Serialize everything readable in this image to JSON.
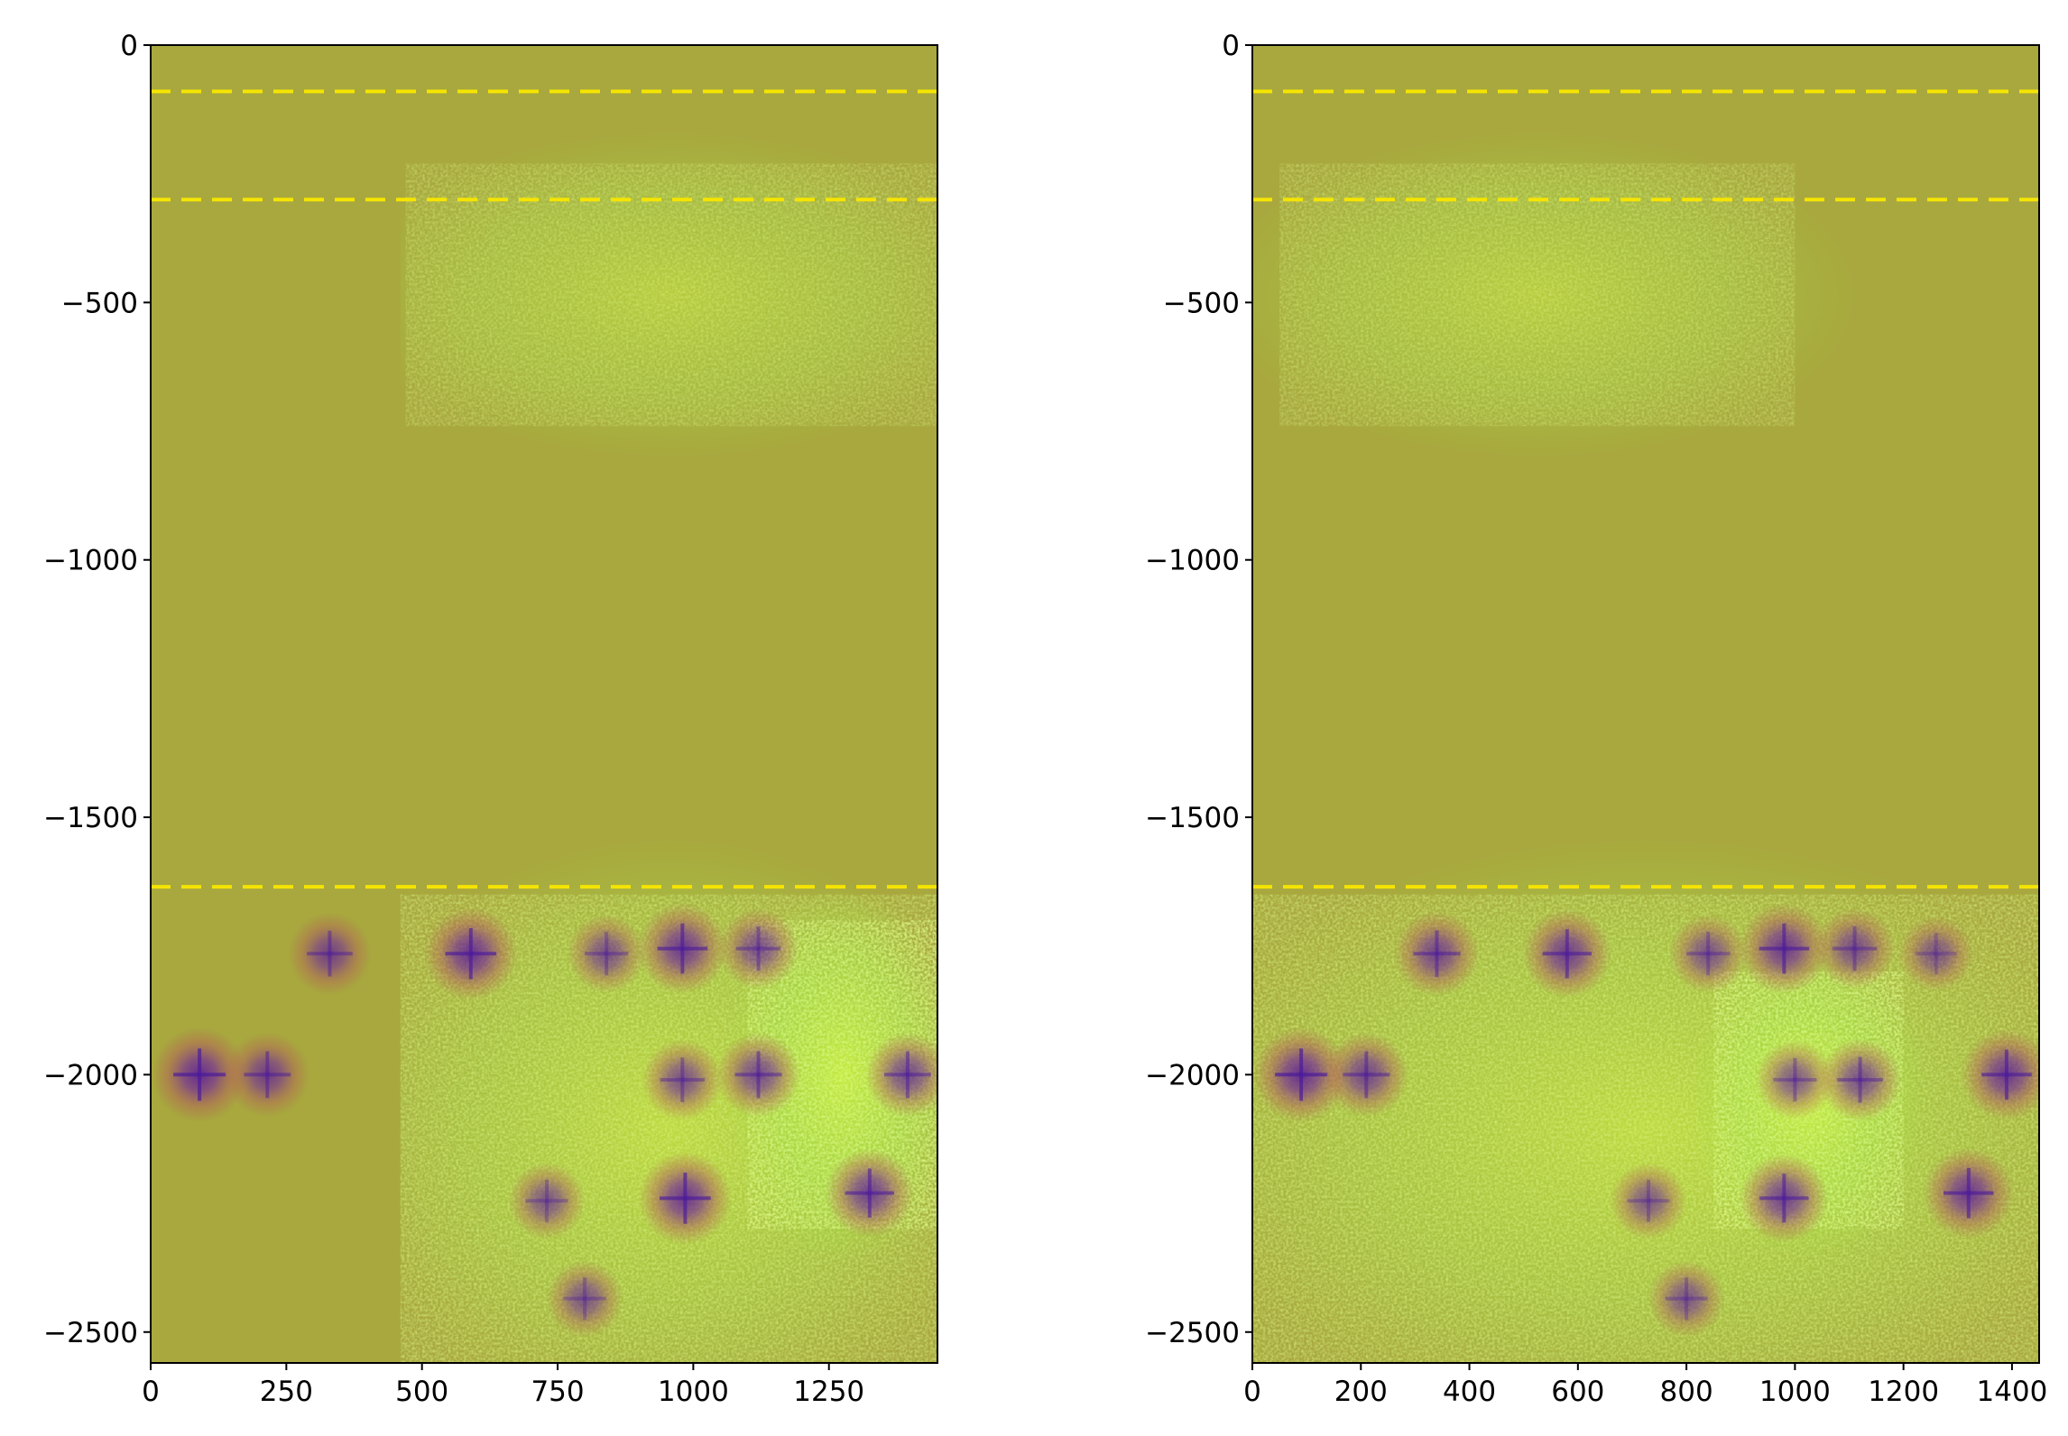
{
  "chart_data": [
    {
      "type": "heatmap",
      "title": "",
      "xlabel": "",
      "ylabel": "",
      "xlim": [
        0,
        1450
      ],
      "ylim": [
        -2560,
        0
      ],
      "xticks": [
        0,
        250,
        500,
        750,
        1000,
        1250
      ],
      "yticks": [
        0,
        -500,
        -1000,
        -1500,
        -2000,
        -2500
      ],
      "xtick_labels": [
        "0",
        "250",
        "500",
        "750",
        "1000",
        "1250"
      ],
      "ytick_labels": [
        "0",
        "−500",
        "−1000",
        "−1500",
        "−2000",
        "−2500"
      ],
      "background_color": "#a8a83e",
      "masked_region": {
        "x": [
          0,
          460
        ],
        "y": [
          -2560,
          -310
        ]
      },
      "hlines": [
        {
          "y": -90
        },
        {
          "y": -300
        },
        {
          "y": -1635
        }
      ],
      "hline_color": "#f5e400",
      "hline_style": "dashed",
      "green_regions": [
        {
          "x": [
            470,
            1450
          ],
          "y": [
            -740,
            -230
          ],
          "intensity": 0.55
        },
        {
          "x": [
            460,
            1450
          ],
          "y": [
            -2560,
            -1650
          ],
          "intensity": 0.75
        },
        {
          "x": [
            1100,
            1450
          ],
          "y": [
            -2300,
            -1700
          ],
          "intensity": 0.95
        }
      ],
      "spots": [
        {
          "x": 330,
          "y": -1765,
          "strength": 0.55
        },
        {
          "x": 590,
          "y": -1765,
          "strength": 0.8
        },
        {
          "x": 840,
          "y": -1765,
          "strength": 0.45
        },
        {
          "x": 980,
          "y": -1755,
          "strength": 0.75
        },
        {
          "x": 1120,
          "y": -1755,
          "strength": 0.5
        },
        {
          "x": 90,
          "y": -2000,
          "strength": 0.85
        },
        {
          "x": 215,
          "y": -2000,
          "strength": 0.6
        },
        {
          "x": 980,
          "y": -2010,
          "strength": 0.5
        },
        {
          "x": 1120,
          "y": -2000,
          "strength": 0.6
        },
        {
          "x": 1395,
          "y": -2000,
          "strength": 0.6
        },
        {
          "x": 730,
          "y": -2245,
          "strength": 0.4
        },
        {
          "x": 985,
          "y": -2240,
          "strength": 0.8
        },
        {
          "x": 1325,
          "y": -2230,
          "strength": 0.7
        },
        {
          "x": 800,
          "y": -2435,
          "strength": 0.4
        }
      ]
    },
    {
      "type": "heatmap",
      "title": "",
      "xlabel": "",
      "ylabel": "",
      "xlim": [
        0,
        1450
      ],
      "ylim": [
        -2560,
        0
      ],
      "xticks": [
        0,
        200,
        400,
        600,
        800,
        1000,
        1200,
        1400
      ],
      "yticks": [
        0,
        -500,
        -1000,
        -1500,
        -2000,
        -2500
      ],
      "xtick_labels": [
        "0",
        "200",
        "400",
        "600",
        "800",
        "1000",
        "1200",
        "1400"
      ],
      "ytick_labels": [
        "0",
        "−500",
        "−1000",
        "−1500",
        "−2000",
        "−2500"
      ],
      "background_color": "#a8a83e",
      "hlines": [
        {
          "y": -90
        },
        {
          "y": -300
        },
        {
          "y": -1635
        }
      ],
      "hline_color": "#f5e400",
      "hline_style": "dashed",
      "green_regions": [
        {
          "x": [
            50,
            1000
          ],
          "y": [
            -740,
            -230
          ],
          "intensity": 0.55
        },
        {
          "x": [
            0,
            1450
          ],
          "y": [
            -2560,
            -1650
          ],
          "intensity": 0.75
        },
        {
          "x": [
            850,
            1200
          ],
          "y": [
            -2300,
            -1800
          ],
          "intensity": 0.95
        }
      ],
      "spots": [
        {
          "x": 340,
          "y": -1765,
          "strength": 0.6
        },
        {
          "x": 580,
          "y": -1765,
          "strength": 0.7
        },
        {
          "x": 840,
          "y": -1765,
          "strength": 0.45
        },
        {
          "x": 980,
          "y": -1755,
          "strength": 0.75
        },
        {
          "x": 1110,
          "y": -1755,
          "strength": 0.5
        },
        {
          "x": 1260,
          "y": -1765,
          "strength": 0.35
        },
        {
          "x": 90,
          "y": -2000,
          "strength": 0.85
        },
        {
          "x": 210,
          "y": -2000,
          "strength": 0.6
        },
        {
          "x": 1000,
          "y": -2010,
          "strength": 0.45
        },
        {
          "x": 1120,
          "y": -2010,
          "strength": 0.55
        },
        {
          "x": 1390,
          "y": -2000,
          "strength": 0.75
        },
        {
          "x": 730,
          "y": -2245,
          "strength": 0.4
        },
        {
          "x": 980,
          "y": -2240,
          "strength": 0.7
        },
        {
          "x": 1320,
          "y": -2230,
          "strength": 0.75
        },
        {
          "x": 800,
          "y": -2435,
          "strength": 0.4
        }
      ]
    }
  ]
}
